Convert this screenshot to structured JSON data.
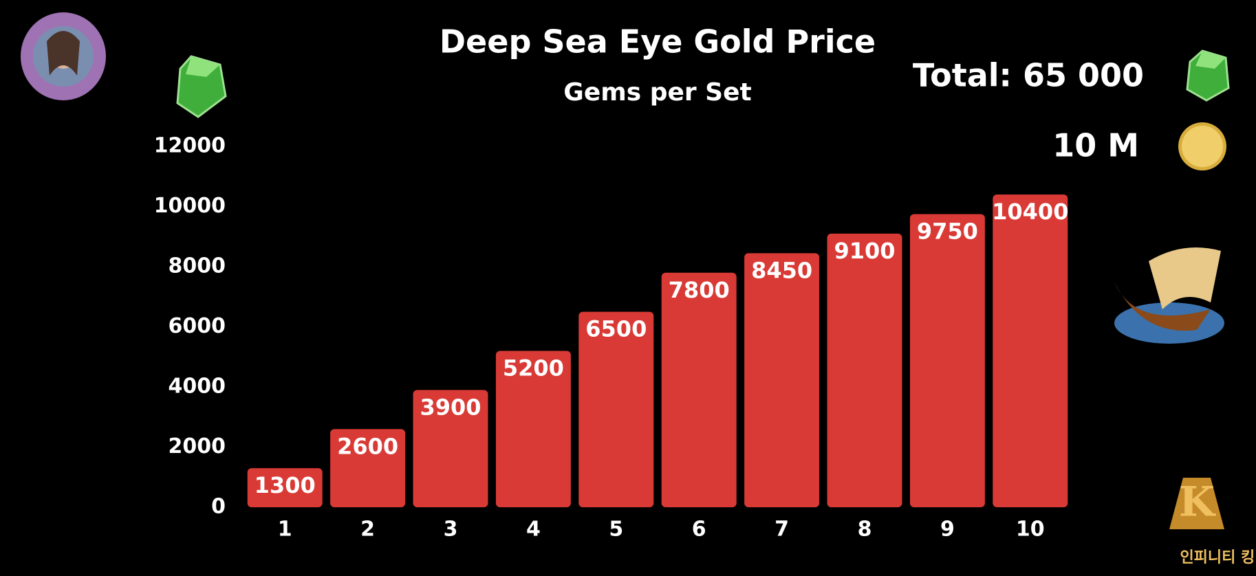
{
  "chart_data": {
    "type": "bar",
    "title": "Deep Sea Eye Gold Price",
    "subtitle": "Gems per Set",
    "annotations": [
      "Total: 65 000",
      "10 M"
    ],
    "logo_text": "인피니티 킹덤",
    "categories": [
      "1",
      "2",
      "3",
      "4",
      "5",
      "6",
      "7",
      "8",
      "9",
      "10"
    ],
    "values": [
      1300,
      2600,
      3900,
      5200,
      6500,
      7800,
      8450,
      9100,
      9750,
      10400
    ],
    "color": "#d93a35",
    "ylim": [
      0,
      12000
    ],
    "yticks": [
      0,
      2000,
      4000,
      6000,
      8000,
      10000,
      12000
    ],
    "grid": false
  }
}
